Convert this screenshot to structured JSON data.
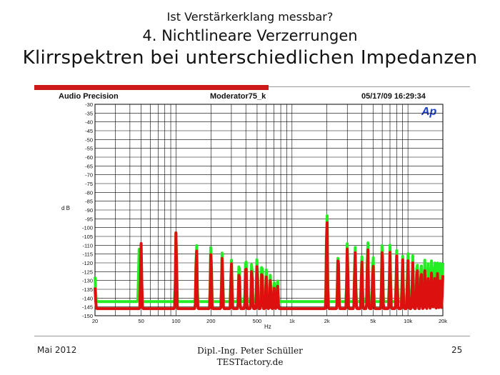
{
  "slide": {
    "title_small": "Ist Verstärkerklang messbar?",
    "title_medium": "4. Nichtlineare Verzerrungen",
    "title_large": "Klirrspektren bei unterschiedlichen Impedanzen",
    "footer_date": "Mai 2012",
    "footer_author": "Dipl.-Ing. Peter Schüller",
    "footer_site": "TESTfactory.de",
    "page_number": "25"
  },
  "chart_data": {
    "type": "line",
    "header_left": "Audio Precision",
    "header_center": "Moderator75_k",
    "header_right": "05/17/09 16:29:34",
    "logo_text": "Ap",
    "xlabel": "Hz",
    "ylabel": "d B",
    "x_scale": "log",
    "xlim": [
      20,
      20000
    ],
    "ylim": [
      -150,
      -30
    ],
    "x_ticks": [
      {
        "value": 20,
        "label": "20"
      },
      {
        "value": 50,
        "label": "50"
      },
      {
        "value": 100,
        "label": "100"
      },
      {
        "value": 200,
        "label": "200"
      },
      {
        "value": 500,
        "label": "500"
      },
      {
        "value": 1000,
        "label": "1k"
      },
      {
        "value": 2000,
        "label": "2k"
      },
      {
        "value": 5000,
        "label": "5k"
      },
      {
        "value": 10000,
        "label": "10k"
      },
      {
        "value": 20000,
        "label": "20k"
      }
    ],
    "y_ticks": [
      -30,
      -35,
      -40,
      -45,
      -50,
      -55,
      -60,
      -65,
      -70,
      -75,
      -80,
      -85,
      -90,
      -95,
      -100,
      -105,
      -110,
      -115,
      -120,
      -125,
      -130,
      -135,
      -140,
      -145,
      -150
    ],
    "grid": true,
    "colors": {
      "green": "#22ee22",
      "red": "#dd1010",
      "grid": "#000000",
      "logo": "#1a3ec8"
    },
    "series": [
      {
        "color_key": "green",
        "floor": -142,
        "peaks": [
          [
            20,
            -128
          ],
          [
            48,
            -112
          ],
          [
            100,
            -102
          ],
          [
            150,
            -107
          ],
          [
            200,
            -108
          ],
          [
            250,
            -114
          ],
          [
            300,
            -118
          ],
          [
            350,
            -118
          ],
          [
            400,
            -114
          ],
          [
            450,
            -118
          ],
          [
            500,
            -116
          ],
          [
            550,
            -118
          ],
          [
            600,
            -124
          ],
          [
            650,
            -127
          ],
          [
            700,
            -130
          ],
          [
            750,
            -130
          ],
          [
            2000,
            -88
          ],
          [
            2500,
            -112
          ],
          [
            3000,
            -108
          ],
          [
            3500,
            -110
          ],
          [
            4000,
            -116
          ],
          [
            4500,
            -106
          ],
          [
            5000,
            -114
          ],
          [
            6000,
            -106
          ],
          [
            7000,
            -110
          ],
          [
            8000,
            -113
          ],
          [
            9000,
            -116
          ],
          [
            10000,
            -114
          ],
          [
            11000,
            -116
          ],
          [
            12000,
            -117
          ],
          [
            13000,
            -118
          ],
          [
            14000,
            -118
          ],
          [
            15000,
            -118
          ],
          [
            16000,
            -118
          ],
          [
            17000,
            -119
          ],
          [
            18000,
            -120
          ],
          [
            19000,
            -120
          ],
          [
            20000,
            -120
          ]
        ]
      },
      {
        "color_key": "red",
        "floor": -146,
        "peaks": [
          [
            20,
            -134
          ],
          [
            50,
            -109
          ],
          [
            100,
            -102
          ],
          [
            150,
            -110
          ],
          [
            200,
            -112
          ],
          [
            250,
            -117
          ],
          [
            300,
            -120
          ],
          [
            350,
            -123
          ],
          [
            400,
            -118
          ],
          [
            450,
            -122
          ],
          [
            500,
            -120
          ],
          [
            550,
            -122
          ],
          [
            600,
            -128
          ],
          [
            650,
            -130
          ],
          [
            700,
            -133
          ],
          [
            750,
            -133
          ],
          [
            2000,
            -92
          ],
          [
            2500,
            -113
          ],
          [
            3000,
            -111
          ],
          [
            3500,
            -113
          ],
          [
            4000,
            -119
          ],
          [
            4500,
            -110
          ],
          [
            5000,
            -119
          ],
          [
            6000,
            -110
          ],
          [
            7000,
            -114
          ],
          [
            8000,
            -116
          ],
          [
            9000,
            -118
          ],
          [
            10000,
            -118
          ],
          [
            11000,
            -120
          ],
          [
            12000,
            -120
          ],
          [
            13000,
            -123
          ],
          [
            14000,
            -124
          ],
          [
            15000,
            -127
          ],
          [
            16000,
            -125
          ],
          [
            17000,
            -128
          ],
          [
            18000,
            -126
          ],
          [
            19000,
            -130
          ],
          [
            20000,
            -127
          ]
        ]
      }
    ]
  }
}
